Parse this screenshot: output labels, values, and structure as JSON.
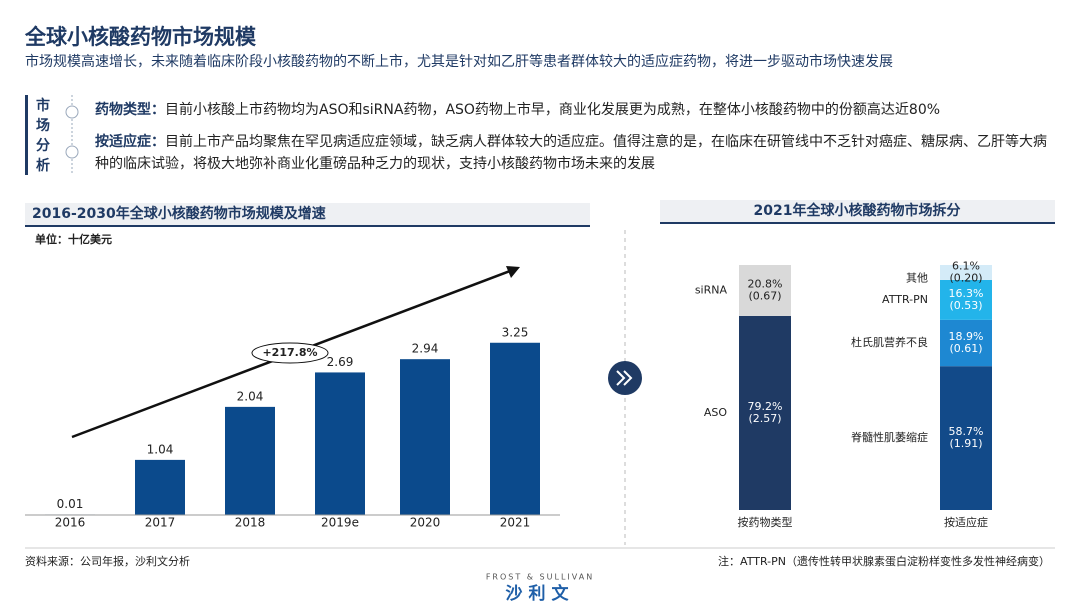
{
  "header": {
    "title": "全球小核酸药物市场规模",
    "subtitle": "市场规模高速增长，未来随着临床阶段小核酸药物的不断上市，尤其是针对如乙肝等患者群体较大的适应症药物，将进一步驱动市场快速发展"
  },
  "analysis": {
    "label": "市场分析",
    "items": [
      {
        "heading": "药物类型：",
        "text": "目前小核酸上市药物均为ASO和siRNA药物，ASO药物上市早，商业化发展更为成熟，在整体小核酸药物中的份额高达近80%"
      },
      {
        "heading": "按适应症：",
        "text": "目前上市产品均聚焦在罕见病适应症领域，缺乏病人群体较大的适应症。值得注意的是，在临床在研管线中不乏针对癌症、糖尿病、乙肝等大病种的临床试验，将极大地弥补商业化重磅品种乏力的现状，支持小核酸药物市场未来的发展"
      }
    ]
  },
  "chart_data": [
    {
      "type": "bar",
      "title": "2016-2030年全球小核酸药物市场规模及增速",
      "unit": "单位：十亿美元",
      "categories": [
        "2016",
        "2017",
        "2018",
        "2019e",
        "2020",
        "2021"
      ],
      "values": [
        0.01,
        1.04,
        2.04,
        2.69,
        2.94,
        3.25
      ],
      "color": "#0b4a8c",
      "annotation": "+217.8%"
    },
    {
      "type": "stacked-bar",
      "title": "2021年全球小核酸药物市场拆分",
      "categories": [
        "按药物类型",
        "按适应症"
      ],
      "ylim": [
        0,
        100
      ],
      "series": [
        {
          "name": "ASO",
          "color": "#1f3a64",
          "values": [
            79.2,
            null
          ],
          "value_labels": [
            "79.2%",
            null
          ],
          "amounts": [
            2.57,
            null
          ],
          "amount_labels": [
            "(2.57)",
            null
          ]
        },
        {
          "name": "siRNA",
          "color": "#d9d9d9",
          "values": [
            20.8,
            null
          ],
          "value_labels": [
            "20.8%",
            null
          ],
          "amounts": [
            0.67,
            null
          ],
          "amount_labels": [
            "(0.67)",
            null
          ]
        },
        {
          "name": "脊髓性肌萎缩症",
          "color": "#124a89",
          "values": [
            null,
            58.7
          ],
          "value_labels": [
            null,
            "58.7%"
          ],
          "amounts": [
            null,
            1.91
          ],
          "amount_labels": [
            null,
            "(1.91)"
          ]
        },
        {
          "name": "杜氏肌营养不良",
          "color": "#1e88d2",
          "values": [
            null,
            18.9
          ],
          "value_labels": [
            null,
            "18.9%"
          ],
          "amounts": [
            null,
            0.61
          ],
          "amount_labels": [
            null,
            "(0.61)"
          ]
        },
        {
          "name": "ATTR-PN",
          "color": "#23b4ea",
          "values": [
            null,
            16.3
          ],
          "value_labels": [
            null,
            "16.3%"
          ],
          "amounts": [
            null,
            0.53
          ],
          "amount_labels": [
            null,
            "(0.53)"
          ]
        },
        {
          "name": "其他",
          "color": "#d4ebf8",
          "values": [
            null,
            6.1
          ],
          "value_labels": [
            null,
            "6.1%"
          ],
          "amounts": [
            null,
            0.2
          ],
          "amount_labels": [
            null,
            "(0.20)"
          ]
        }
      ]
    }
  ],
  "footer": {
    "source": "资料来源：公司年报，沙利文分析",
    "note": "注：ATTR-PN（遗传性转甲状腺素蛋白淀粉样变性多发性神经病变）",
    "logo_en": "FROST & SULLIVAN",
    "logo": "沙利文"
  }
}
